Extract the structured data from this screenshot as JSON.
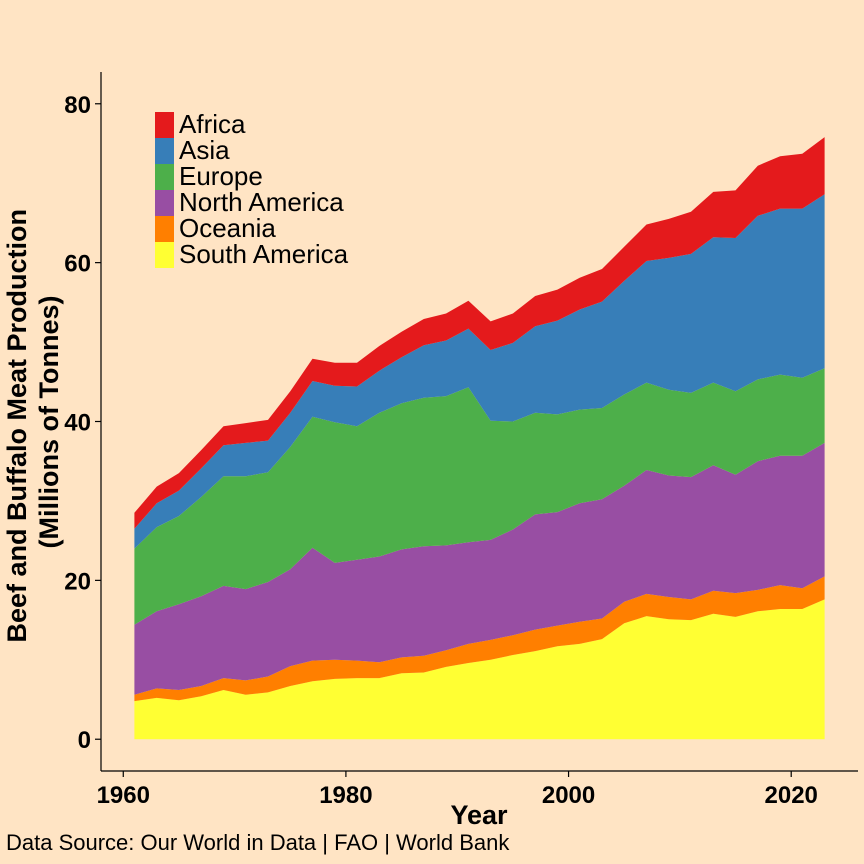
{
  "colors": {
    "background": "#FFE4C4",
    "Africa": "#E41A1C",
    "Asia": "#377EB8",
    "Europe": "#4DAF4A",
    "North America": "#984EA3",
    "Oceania": "#FF7F00",
    "South America": "#FFFF33"
  },
  "caption": "Data Source: Our World in Data | FAO | World Bank",
  "chart_data": {
    "type": "area",
    "stacked": true,
    "xlabel": "Year",
    "ylabel_line1": "Beef and Buffalo Meat Production",
    "ylabel_line2": "(Millions of Tonnes)",
    "xlim": [
      1958,
      2026
    ],
    "ylim": [
      -4,
      84
    ],
    "x_ticks": [
      1960,
      1980,
      2000,
      2020
    ],
    "y_ticks": [
      0,
      20,
      40,
      60,
      80
    ],
    "grid": false,
    "legend_position": "top-left",
    "legend_order": [
      "Africa",
      "Asia",
      "Europe",
      "North America",
      "Oceania",
      "South America"
    ],
    "x": [
      1961,
      1963,
      1965,
      1967,
      1969,
      1971,
      1973,
      1975,
      1977,
      1979,
      1981,
      1983,
      1985,
      1987,
      1989,
      1991,
      1993,
      1995,
      1997,
      1999,
      2001,
      2003,
      2005,
      2007,
      2009,
      2011,
      2013,
      2015,
      2017,
      2019,
      2021,
      2023
    ],
    "series": [
      {
        "name": "South America",
        "values": [
          4.8,
          5.2,
          4.9,
          5.4,
          6.2,
          5.6,
          5.9,
          6.7,
          7.3,
          7.6,
          7.7,
          7.7,
          8.3,
          8.4,
          9.1,
          9.6,
          10.0,
          10.6,
          11.1,
          11.7,
          12.0,
          12.6,
          14.6,
          15.5,
          15.1,
          15.0,
          15.8,
          15.4,
          16.1,
          16.4,
          16.4,
          17.6
        ]
      },
      {
        "name": "Oceania",
        "values": [
          0.8,
          1.2,
          1.3,
          1.3,
          1.5,
          1.8,
          2.0,
          2.5,
          2.6,
          2.4,
          2.2,
          2.0,
          2.0,
          2.1,
          2.1,
          2.4,
          2.5,
          2.5,
          2.7,
          2.6,
          2.8,
          2.6,
          2.7,
          2.8,
          2.8,
          2.6,
          2.9,
          3.0,
          2.7,
          3.0,
          2.6,
          2.9
        ]
      },
      {
        "name": "North America",
        "values": [
          8.8,
          9.7,
          10.8,
          11.3,
          11.6,
          11.5,
          11.9,
          12.2,
          14.2,
          12.2,
          12.7,
          13.3,
          13.6,
          13.8,
          13.2,
          12.8,
          12.6,
          13.3,
          14.5,
          14.3,
          14.9,
          15.0,
          14.6,
          15.6,
          15.3,
          15.4,
          15.8,
          14.9,
          16.2,
          16.3,
          16.7,
          16.8
        ]
      },
      {
        "name": "Europe",
        "values": [
          9.6,
          10.6,
          11.1,
          12.5,
          13.8,
          14.2,
          13.8,
          15.4,
          16.5,
          17.7,
          16.8,
          18.1,
          18.4,
          18.7,
          18.8,
          19.5,
          15.0,
          13.6,
          12.8,
          12.3,
          11.8,
          11.5,
          11.5,
          11.0,
          10.8,
          10.6,
          10.4,
          10.5,
          10.3,
          10.2,
          9.8,
          9.4
        ]
      },
      {
        "name": "Asia",
        "values": [
          2.5,
          3.0,
          3.2,
          3.6,
          3.9,
          4.2,
          4.0,
          4.3,
          4.5,
          4.6,
          5.0,
          5.3,
          5.8,
          6.6,
          7.0,
          7.4,
          8.9,
          9.9,
          10.9,
          11.8,
          12.6,
          13.4,
          14.3,
          15.3,
          16.6,
          17.5,
          18.3,
          19.3,
          20.6,
          20.9,
          21.3,
          21.9
        ]
      },
      {
        "name": "Africa",
        "values": [
          2.0,
          2.1,
          2.2,
          2.3,
          2.4,
          2.5,
          2.6,
          2.7,
          2.8,
          2.9,
          3.0,
          3.1,
          3.2,
          3.3,
          3.4,
          3.5,
          3.6,
          3.7,
          3.8,
          3.9,
          4.0,
          4.1,
          4.3,
          4.6,
          4.9,
          5.3,
          5.7,
          6.0,
          6.3,
          6.6,
          6.9,
          7.2
        ]
      }
    ]
  }
}
